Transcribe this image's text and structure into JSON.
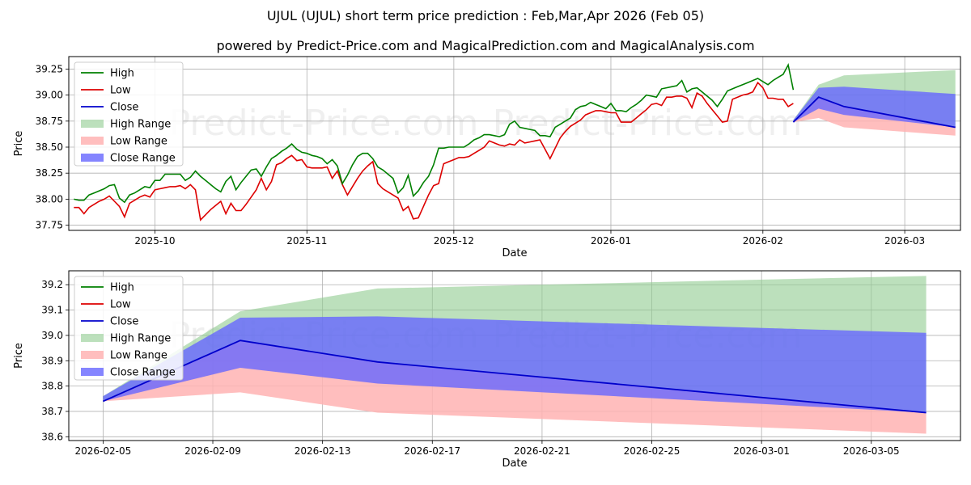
{
  "title": "UJUL (UJUL) short term price prediction : Feb,Mar,Apr 2026 (Feb 05)",
  "subtitle": "powered by Predict-Price.com and MagicalPrediction.com and MagicalAnalysis.com",
  "watermark": "Predict-Price.com",
  "colors": {
    "high": "#008000",
    "low": "#dd0000",
    "close": "#0000cc",
    "high_range": "#8fcb8f",
    "low_range": "#ffb3b3",
    "close_range": "#6666ff"
  },
  "chart_data": [
    {
      "type": "line",
      "panel": "top",
      "xlabel": "Date",
      "ylabel": "Price",
      "ylim": [
        37.7,
        39.37
      ],
      "yticks": [
        "37.75",
        "38.00",
        "38.25",
        "38.50",
        "38.75",
        "39.00",
        "39.25"
      ],
      "xticks": [
        "2025-10",
        "2025-11",
        "2025-12",
        "2026-01",
        "2026-02",
        "2026-03"
      ],
      "xtick_days": [
        17,
        47,
        76,
        107,
        137,
        165
      ],
      "xlim_days": [
        0,
        176
      ],
      "legend": [
        "High",
        "Low",
        "Close",
        "High Range",
        "Low Range",
        "Close Range"
      ],
      "history": {
        "days": [
          1,
          2,
          3,
          4,
          5,
          6,
          7,
          8,
          9,
          10,
          11,
          12,
          13,
          14,
          15,
          16,
          17,
          18,
          19,
          20,
          21,
          22,
          23,
          24,
          25,
          26,
          27,
          28,
          29,
          30,
          31,
          32,
          33,
          34,
          35,
          36,
          37,
          38,
          39,
          40,
          41,
          42,
          43,
          44,
          45,
          46,
          47,
          48,
          49,
          50,
          51,
          52,
          53,
          54,
          55,
          56,
          57,
          58,
          59,
          60,
          61,
          62,
          63,
          64,
          65,
          66,
          67,
          68,
          69,
          70,
          71,
          72,
          73,
          74,
          75,
          76,
          77,
          78,
          79,
          80,
          81,
          82,
          83,
          84,
          85,
          86,
          87,
          88,
          89,
          90,
          91,
          92,
          93,
          94,
          95,
          96,
          97,
          98,
          99,
          100,
          101,
          102,
          103,
          104,
          105,
          106,
          107,
          108,
          109,
          110,
          111,
          112,
          113,
          114,
          115,
          116,
          117,
          118,
          119,
          120,
          121,
          122,
          123,
          124,
          125,
          126,
          127,
          128,
          129,
          130,
          131,
          132,
          133,
          134,
          135,
          136,
          137,
          138,
          139,
          140,
          141,
          142,
          143
        ],
        "high": [
          38.0,
          37.99,
          37.99,
          38.04,
          38.06,
          38.08,
          38.1,
          38.13,
          38.14,
          38.01,
          37.97,
          38.04,
          38.06,
          38.09,
          38.12,
          38.11,
          38.18,
          38.18,
          38.24,
          38.24,
          38.24,
          38.24,
          38.18,
          38.21,
          38.27,
          38.22,
          38.18,
          38.14,
          38.1,
          38.07,
          38.17,
          38.22,
          38.09,
          38.16,
          38.22,
          38.28,
          38.29,
          38.22,
          38.31,
          38.39,
          38.42,
          38.46,
          38.49,
          38.53,
          38.48,
          38.45,
          38.44,
          38.42,
          38.41,
          38.39,
          38.34,
          38.38,
          38.32,
          38.15,
          38.23,
          38.33,
          38.41,
          38.44,
          38.44,
          38.39,
          38.31,
          38.28,
          38.24,
          38.2,
          38.06,
          38.11,
          38.23,
          38.03,
          38.08,
          38.16,
          38.22,
          38.33,
          38.49,
          38.49,
          38.5,
          38.5,
          38.5,
          38.5,
          38.53,
          38.57,
          38.59,
          38.62,
          38.62,
          38.61,
          38.6,
          38.62,
          38.72,
          38.75,
          38.69,
          38.68,
          38.67,
          38.66,
          38.61,
          38.61,
          38.6,
          38.69,
          38.72,
          38.75,
          38.78,
          38.86,
          38.89,
          38.9,
          38.93,
          38.91,
          38.89,
          38.87,
          38.92,
          38.85,
          38.85,
          38.84,
          38.88,
          38.91,
          38.95,
          39.0,
          38.99,
          38.98,
          39.06,
          39.07,
          39.08,
          39.09,
          39.14,
          39.03,
          39.06,
          39.07,
          39.03,
          38.99,
          38.95,
          38.89,
          38.96,
          39.04,
          39.06,
          39.08,
          39.1,
          39.12,
          39.14,
          39.16,
          39.13,
          39.1,
          39.14,
          39.17,
          39.2,
          39.29,
          39.05
        ],
        "low": [
          37.92,
          37.92,
          37.86,
          37.92,
          37.95,
          37.98,
          38.0,
          38.03,
          37.98,
          37.93,
          37.83,
          37.96,
          37.99,
          38.02,
          38.04,
          38.02,
          38.09,
          38.1,
          38.11,
          38.12,
          38.12,
          38.13,
          38.1,
          38.14,
          38.09,
          37.8,
          37.85,
          37.9,
          37.94,
          37.98,
          37.86,
          37.96,
          37.89,
          37.89,
          37.95,
          38.02,
          38.09,
          38.2,
          38.09,
          38.17,
          38.33,
          38.35,
          38.39,
          38.42,
          38.37,
          38.38,
          38.31,
          38.3,
          38.3,
          38.3,
          38.31,
          38.2,
          38.27,
          38.14,
          38.04,
          38.12,
          38.2,
          38.27,
          38.32,
          38.36,
          38.15,
          38.1,
          38.07,
          38.04,
          38.01,
          37.89,
          37.93,
          37.81,
          37.82,
          37.93,
          38.04,
          38.13,
          38.15,
          38.34,
          38.36,
          38.38,
          38.4,
          38.4,
          38.41,
          38.44,
          38.47,
          38.5,
          38.56,
          38.54,
          38.52,
          38.51,
          38.53,
          38.52,
          38.57,
          38.54,
          38.55,
          38.56,
          38.57,
          38.48,
          38.39,
          38.49,
          38.59,
          38.65,
          38.7,
          38.73,
          38.76,
          38.81,
          38.83,
          38.85,
          38.85,
          38.84,
          38.83,
          38.83,
          38.74,
          38.74,
          38.74,
          38.78,
          38.82,
          38.86,
          38.91,
          38.92,
          38.9,
          38.98,
          38.98,
          38.99,
          38.99,
          38.97,
          38.88,
          39.02,
          38.99,
          38.92,
          38.86,
          38.8,
          38.74,
          38.75,
          38.96,
          38.98,
          39.0,
          39.01,
          39.03,
          39.12,
          39.07,
          38.97,
          38.97,
          38.96,
          38.96,
          38.89,
          38.92
        ]
      },
      "forecast": {
        "days": [
          143,
          148,
          153,
          175
        ],
        "close": [
          38.74,
          38.98,
          38.89,
          38.69
        ],
        "high_range": {
          "upper": [
            38.76,
            39.1,
            39.19,
            39.24
          ],
          "lower": [
            38.74,
            38.98,
            38.89,
            38.69
          ]
        },
        "low_range": {
          "upper": [
            38.74,
            38.98,
            38.89,
            38.69
          ],
          "lower": [
            38.74,
            38.78,
            38.69,
            38.61
          ]
        },
        "close_range": {
          "upper": [
            38.76,
            39.07,
            39.08,
            39.01
          ],
          "lower": [
            38.74,
            38.87,
            38.81,
            38.69
          ]
        }
      }
    },
    {
      "type": "line",
      "panel": "bottom",
      "xlabel": "Date",
      "ylabel": "Price",
      "ylim": [
        38.585,
        39.255
      ],
      "yticks": [
        "38.6",
        "38.7",
        "38.8",
        "38.9",
        "39.0",
        "39.1",
        "39.2"
      ],
      "xticks": [
        "2026-02-05",
        "2026-02-09",
        "2026-02-13",
        "2026-02-17",
        "2026-02-21",
        "2026-02-25",
        "2026-03-01",
        "2026-03-05"
      ],
      "xtick_days": [
        0,
        4,
        8,
        12,
        16,
        20,
        24,
        28
      ],
      "xlim_days": [
        -1.25,
        31.25
      ],
      "legend": [
        "High",
        "Low",
        "Close",
        "High Range",
        "Low Range",
        "Close Range"
      ],
      "forecast": {
        "days": [
          0,
          5,
          10,
          30
        ],
        "close": [
          38.74,
          38.98,
          38.895,
          38.695
        ],
        "high_range": {
          "upper": [
            38.76,
            39.095,
            39.185,
            39.235
          ],
          "lower": [
            38.74,
            38.98,
            38.895,
            38.695
          ]
        },
        "low_range": {
          "upper": [
            38.74,
            38.98,
            38.895,
            38.695
          ],
          "lower": [
            38.74,
            38.775,
            38.695,
            38.612
          ]
        },
        "close_range": {
          "upper": [
            38.76,
            39.07,
            39.075,
            39.01
          ],
          "lower": [
            38.74,
            38.872,
            38.81,
            38.695
          ]
        }
      }
    }
  ]
}
